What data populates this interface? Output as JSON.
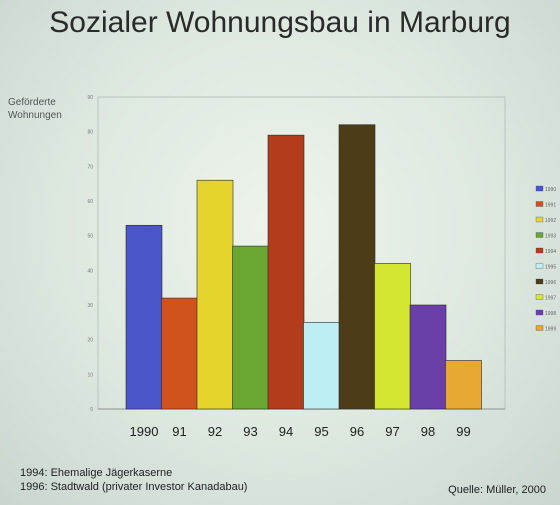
{
  "title": "Sozialer Wohnungsbau in Marburg",
  "chart_data": {
    "type": "bar",
    "title": "Sozialer Wohnungsbau in Marburg",
    "ylabel": "Geförderte Wohnungen",
    "xlabel": "",
    "categories": [
      "1990",
      "91",
      "92",
      "93",
      "94",
      "95",
      "96",
      "97",
      "98",
      "99"
    ],
    "values": [
      53,
      32,
      66,
      47,
      79,
      25,
      82,
      42,
      30,
      14
    ],
    "colors": [
      "#4a55c8",
      "#d2521e",
      "#e4d42c",
      "#6aa632",
      "#b23c1c",
      "#bdeef3",
      "#4c3c18",
      "#d4e632",
      "#6a40a8",
      "#e8a834"
    ],
    "ylim": [
      0,
      90
    ],
    "yticks": [
      "0",
      "10",
      "20",
      "30",
      "40",
      "50",
      "60",
      "70",
      "80",
      "90"
    ],
    "grid": false,
    "legend_position": "right",
    "legend": [
      "1990",
      "1991",
      "1992",
      "1993",
      "1994",
      "1995",
      "1996",
      "1997",
      "1998",
      "1999"
    ]
  },
  "footnotes": [
    "1994: Ehemalige Jägerkaserne",
    "1996: Stadtwald (privater Investor Kanadabau)"
  ],
  "source": "Quelle: Müller, 2000"
}
